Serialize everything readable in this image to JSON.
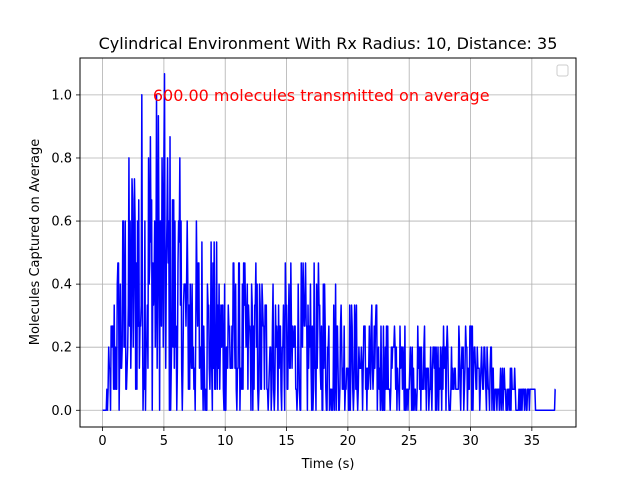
{
  "chart_data": {
    "type": "line",
    "title": "Cylindrical Environment With Rx Radius: 10, Distance: 35",
    "xlabel": "Time (s)",
    "ylabel": "Molecules Captured on Average",
    "xlim": [
      -1.84,
      38.6
    ],
    "ylim": [
      -0.053,
      1.117
    ],
    "xticks": [
      0,
      5,
      10,
      15,
      20,
      25,
      30,
      35
    ],
    "xtick_labels": [
      "0",
      "5",
      "10",
      "15",
      "20",
      "25",
      "30",
      "35"
    ],
    "yticks": [
      0.0,
      0.2,
      0.4,
      0.6,
      0.8,
      1.0
    ],
    "ytick_labels": [
      "0.0",
      "0.2",
      "0.4",
      "0.6",
      "0.8",
      "1.0"
    ],
    "grid": true,
    "legend": "top-right, empty",
    "annotation": {
      "text": "600.00 molecules transmitted on average",
      "x": 4.1,
      "y": 1.0,
      "color": "#ff0000"
    },
    "series": [
      {
        "color": "#0000ff",
        "x_step": 0.05,
        "x_start": 0.0,
        "x_end": 36.9,
        "quantum": 0.0667,
        "envelope": [
          {
            "t": 0.0,
            "peak": 0.0
          },
          {
            "t": 0.4,
            "peak": 0.13
          },
          {
            "t": 1.0,
            "peak": 0.47
          },
          {
            "t": 1.5,
            "peak": 0.67
          },
          {
            "t": 2.0,
            "peak": 0.8
          },
          {
            "t": 3.0,
            "peak": 1.07
          },
          {
            "t": 5.0,
            "peak": 1.07
          },
          {
            "t": 6.0,
            "peak": 0.8
          },
          {
            "t": 8.0,
            "peak": 0.6
          },
          {
            "t": 10.0,
            "peak": 0.53
          },
          {
            "t": 13.0,
            "peak": 0.47
          },
          {
            "t": 18.0,
            "peak": 0.47
          },
          {
            "t": 20.0,
            "peak": 0.4
          },
          {
            "t": 22.0,
            "peak": 0.33
          },
          {
            "t": 25.0,
            "peak": 0.27
          },
          {
            "t": 30.0,
            "peak": 0.27
          },
          {
            "t": 33.0,
            "peak": 0.13
          },
          {
            "t": 36.5,
            "peak": 0.07
          },
          {
            "t": 36.9,
            "peak": 0.07
          }
        ],
        "trailing": {
          "x_from": 35.5,
          "x_to": 36.7,
          "y": 0.0
        }
      }
    ]
  }
}
